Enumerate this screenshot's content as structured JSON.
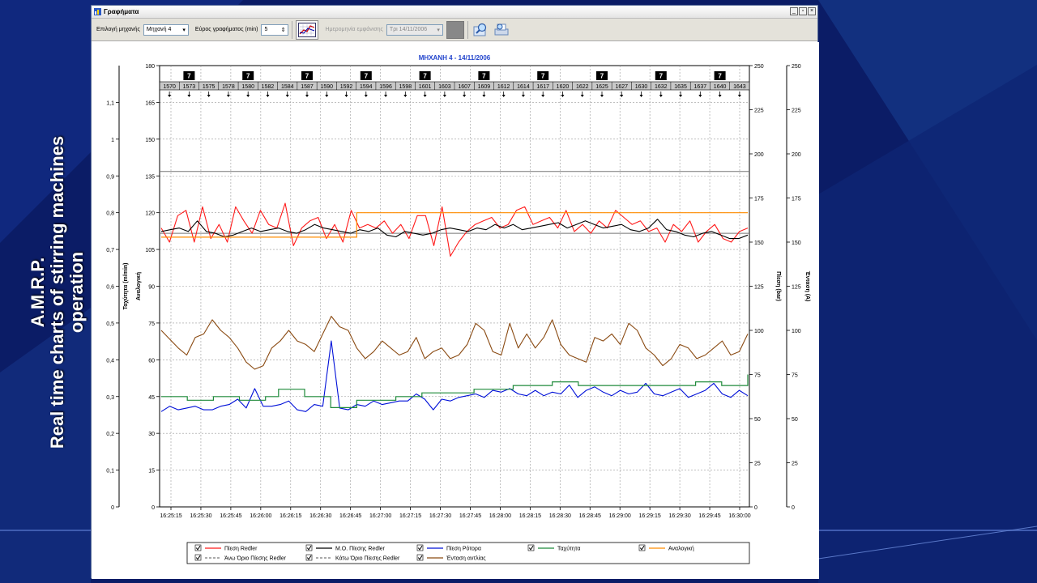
{
  "side_caption": {
    "line1": "A.M.R.P.",
    "line2": "Real time charts of stirring machines",
    "line3": "operation"
  },
  "window": {
    "title": "Γραφήματα",
    "controls": [
      "_",
      "▫",
      "×"
    ]
  },
  "toolbar": {
    "machine_label": "Επιλογή μηχανής",
    "machine_value": "Μηχανή 4",
    "range_label": "Εύρος γραφήματος (min)",
    "range_value": "5",
    "date_label": "Ημερομηνία εμφάνισης",
    "date_value": "Τρι 14/11/2006"
  },
  "colors": {
    "red": "#ff1a1a",
    "black": "#000000",
    "blue": "#0010d8",
    "green": "#1e8a3a",
    "orange": "#ff8c00",
    "brown": "#8a4a12",
    "gray": "#777777"
  },
  "chart_data": {
    "type": "line",
    "title": "ΜΗΧΑΝΗ 4 - 14/11/2006",
    "axes": {
      "left1": {
        "label": "Ταχύτητα (m/min)",
        "ylim": [
          0,
          1.2
        ],
        "ticks": [
          "0",
          "0,1",
          "0,2",
          "0,3",
          "0,4",
          "0,5",
          "0,6",
          "0,7",
          "0,8",
          "0,9",
          "1",
          "1,1"
        ]
      },
      "left2": {
        "label": "Αναλογική",
        "ylim": [
          0,
          180
        ],
        "ticks": [
          "0",
          "15",
          "30",
          "45",
          "60",
          "75",
          "90",
          "105",
          "120",
          "135",
          "150",
          "165",
          "180"
        ]
      },
      "right1": {
        "label": "Πίεση (bar)",
        "ylim": [
          0,
          250
        ],
        "ticks": [
          "0",
          "25",
          "50",
          "75",
          "100",
          "125",
          "150",
          "175",
          "200",
          "225",
          "250"
        ]
      },
      "right2": {
        "label": "Ένταση (A)",
        "ylim": [
          0,
          250
        ],
        "ticks": [
          "0",
          "25",
          "50",
          "75",
          "100",
          "125",
          "150",
          "175",
          "200",
          "225",
          "250"
        ]
      }
    },
    "x_ticks": [
      "16:25:15",
      "16:25:30",
      "16:25:45",
      "16:26:00",
      "16:26:15",
      "16:26:30",
      "16:26:45",
      "16:27:00",
      "16:27:15",
      "16:27:30",
      "16:27:45",
      "16:28:00",
      "16:28:15",
      "16:28:30",
      "16:28:45",
      "16:29:00",
      "16:29:15",
      "16:29:30",
      "16:29:45",
      "16:30:00"
    ],
    "top_markers": [
      "1570",
      "1573",
      "1575",
      "1578",
      "1580",
      "1582",
      "1584",
      "1587",
      "1590",
      "1592",
      "1594",
      "1596",
      "1598",
      "1601",
      "1603",
      "1607",
      "1609",
      "1612",
      "1614",
      "1617",
      "1620",
      "1622",
      "1625",
      "1627",
      "1630",
      "1632",
      "1635",
      "1637",
      "1640",
      "1643"
    ],
    "flag_label": "7",
    "flag_markers": [
      "1573",
      "1580",
      "1587",
      "1594",
      "1601",
      "1609",
      "1617",
      "1625",
      "1632",
      "1640"
    ],
    "reference_lines": {
      "upper_limit": 190,
      "lower_limit": 155
    },
    "series": [
      {
        "name": "Πίεση Redler",
        "axis": "right1",
        "color": "#ff1a1a",
        "values": [
          158,
          150,
          165,
          168,
          150,
          170,
          152,
          160,
          150,
          170,
          162,
          155,
          168,
          160,
          158,
          172,
          148,
          158,
          162,
          164,
          152,
          160,
          150,
          168,
          158,
          160,
          158,
          162,
          155,
          160,
          152,
          165,
          165,
          148,
          170,
          142,
          150,
          156,
          160,
          162,
          164,
          158,
          160,
          168,
          170,
          160,
          162,
          164,
          158,
          168,
          156,
          160,
          155,
          162,
          158,
          168,
          164,
          160,
          162,
          156,
          158,
          150,
          160,
          156,
          162,
          150,
          156,
          160,
          152,
          150,
          156,
          158
        ]
      },
      {
        "name": "Μ.Ο. Πίεσης Redler",
        "axis": "right1",
        "color": "#000000",
        "values": [
          156,
          157,
          158,
          156,
          162,
          156,
          155,
          153,
          154,
          156,
          158,
          156,
          157,
          158,
          156,
          155,
          157,
          160,
          158,
          157,
          156,
          155,
          157,
          156,
          158,
          154,
          153,
          156,
          155,
          154,
          155,
          157,
          158,
          157,
          156,
          158,
          157,
          160,
          158,
          160,
          157,
          158,
          159,
          160,
          161,
          158,
          160,
          162,
          160,
          158,
          159,
          160,
          157,
          156,
          158,
          163,
          157,
          156,
          154,
          153,
          155,
          156,
          154,
          152,
          152,
          154
        ]
      },
      {
        "name": "Πίεση Ρότορα",
        "axis": "right1",
        "color": "#0010d8",
        "values": [
          54,
          57,
          55,
          56,
          57,
          55,
          55,
          57,
          58,
          61,
          56,
          67,
          57,
          57,
          58,
          60,
          55,
          54,
          58,
          57,
          94,
          56,
          55,
          58,
          57,
          60,
          58,
          59,
          60,
          60,
          64,
          61,
          55,
          61,
          60,
          62,
          63,
          64,
          62,
          66,
          65,
          67,
          64,
          63,
          66,
          63,
          65,
          64,
          69,
          62,
          66,
          68,
          65,
          63,
          66,
          64,
          65,
          70,
          64,
          63,
          65,
          67,
          62,
          64,
          66,
          70,
          64,
          62,
          66,
          63
        ]
      },
      {
        "name": "Ταχύτητα",
        "axis": "left1",
        "color": "#1e8a3a",
        "values": [
          0.3,
          0.3,
          0.29,
          0.29,
          0.3,
          0.3,
          0.29,
          0.29,
          0.3,
          0.32,
          0.32,
          0.3,
          0.3,
          0.27,
          0.27,
          0.29,
          0.29,
          0.29,
          0.3,
          0.3,
          0.31,
          0.31,
          0.31,
          0.31,
          0.32,
          0.32,
          0.32,
          0.33,
          0.33,
          0.33,
          0.34,
          0.34,
          0.33,
          0.33,
          0.33,
          0.33,
          0.33,
          0.33,
          0.33,
          0.33,
          0.33,
          0.34,
          0.34,
          0.33,
          0.33,
          0.36
        ]
      },
      {
        "name": "Αναλογική",
        "axis": "left2",
        "color": "#ff8c00",
        "values": [
          110,
          110,
          110,
          110,
          110,
          110,
          110,
          110,
          110,
          110,
          110,
          110,
          110,
          110,
          110,
          120,
          120,
          120,
          120,
          120,
          120,
          120,
          120,
          120,
          120,
          120,
          120,
          120,
          120,
          120,
          120,
          120,
          120,
          120,
          120,
          120,
          120,
          120,
          120,
          120,
          120,
          120,
          120,
          120,
          120,
          120
        ]
      },
      {
        "name": "Άνω Όριο Πίεσης Redler",
        "axis": "right1",
        "color": "#777777",
        "dashed": true,
        "values": []
      },
      {
        "name": "Κάτω Όριο Πίεσης Redler",
        "axis": "right1",
        "color": "#777777",
        "dashed": true,
        "values": []
      },
      {
        "name": "Ένταση αντλίας",
        "axis": "right2",
        "color": "#8a4a12",
        "values": [
          100,
          95,
          90,
          86,
          96,
          98,
          106,
          100,
          96,
          90,
          82,
          78,
          80,
          90,
          94,
          100,
          94,
          92,
          88,
          98,
          108,
          102,
          100,
          90,
          84,
          88,
          94,
          90,
          86,
          88,
          96,
          84,
          88,
          90,
          84,
          86,
          92,
          104,
          100,
          88,
          86,
          104,
          90,
          98,
          90,
          96,
          106,
          92,
          86,
          84,
          82,
          96,
          94,
          98,
          92,
          104,
          100,
          90,
          86,
          80,
          84,
          92,
          90,
          84,
          86,
          90,
          94,
          86,
          88,
          98
        ]
      }
    ],
    "legend": [
      {
        "label": "Πίεση Redler",
        "color": "#ff1a1a",
        "style": "solid"
      },
      {
        "label": "Μ.Ο. Πίεσης Redler",
        "color": "#000000",
        "style": "solid"
      },
      {
        "label": "Πίεση Ρότορα",
        "color": "#0010d8",
        "style": "solid"
      },
      {
        "label": "Ταχύτητα",
        "color": "#1e8a3a",
        "style": "solid"
      },
      {
        "label": "Αναλογική",
        "color": "#ff8c00",
        "style": "solid"
      },
      {
        "label": "Άνω Όριο Πίεσης Redler",
        "color": "#777777",
        "style": "dashed"
      },
      {
        "label": "Κάτω Όριο Πίεσης Redler",
        "color": "#777777",
        "style": "dashed"
      },
      {
        "label": "Ένταση αντλίας",
        "color": "#8a4a12",
        "style": "solid"
      }
    ],
    "grid": true,
    "legend_position": "bottom"
  }
}
